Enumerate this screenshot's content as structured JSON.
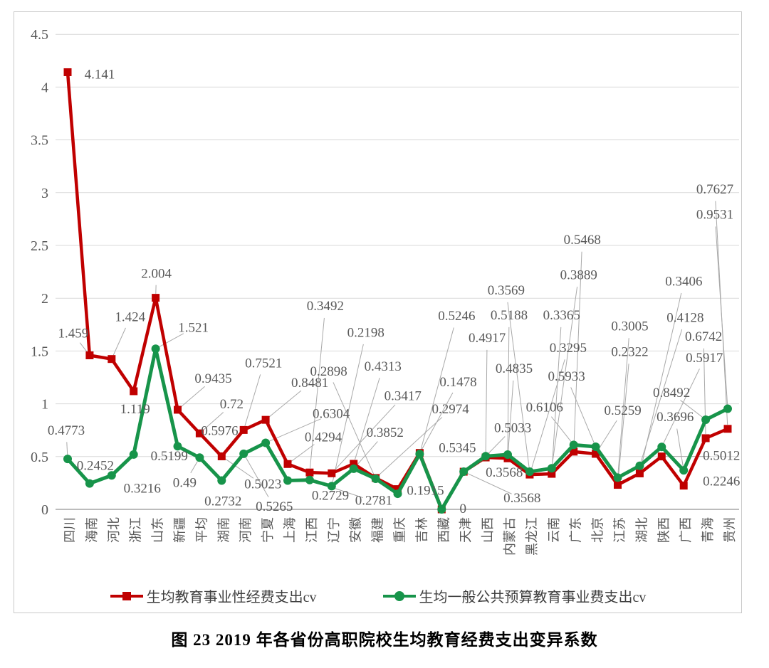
{
  "figure": {
    "caption": "图 23  2019 年各省份高职院校生均教育经费支出变异系数"
  },
  "colors": {
    "series_red": "#C00000",
    "series_green": "#17944A",
    "label_gray": "#595959",
    "grid_gray": "#D9D9D9",
    "leader_gray": "#A9A9A9",
    "axis_gray": "#A6A6A6"
  },
  "chart_data": {
    "type": "line",
    "title": "",
    "xlabel": "",
    "ylabel": "",
    "grid": true,
    "legend_position": "bottom",
    "categories": [
      "四川",
      "海南",
      "河北",
      "浙江",
      "山东",
      "新疆",
      "平均",
      "湖南",
      "河南",
      "宁夏",
      "上海",
      "江西",
      "辽宁",
      "安徽",
      "福建",
      "重庆",
      "吉林",
      "西藏",
      "天津",
      "山西",
      "内蒙古",
      "黑龙江",
      "云南",
      "广东",
      "北京",
      "江苏",
      "湖北",
      "陕西",
      "广西",
      "青海",
      "贵州"
    ],
    "x_axis": {
      "labels_rotation": -90
    },
    "y_axis": {
      "min": 0,
      "max": 4.5,
      "step": 0.5,
      "ticks": [
        "0",
        "0.5",
        "1",
        "1.5",
        "2",
        "2.5",
        "3",
        "3.5",
        "4",
        "4.5"
      ]
    },
    "series": [
      {
        "name": "生均教育事业性经费支出cv",
        "marker": "square",
        "color": "#C00000",
        "values": [
          4.141,
          1.459,
          1.424,
          1.119,
          2.004,
          0.9435,
          0.72,
          0.5023,
          0.7521,
          0.8481,
          0.4294,
          0.3492,
          0.3417,
          0.4313,
          0.2974,
          0.1915,
          0.5345,
          0,
          0.3568,
          0.4917,
          0.4835,
          0.3295,
          0.3365,
          0.5468,
          0.5259,
          0.2322,
          0.3406,
          0.5012,
          0.2246,
          0.6742,
          0.7627
        ],
        "data_labels": [
          "4.141",
          "1.459",
          "1.424",
          "1.119",
          "2.004",
          "0.9435",
          "0.72",
          "0.5023",
          "0.7521",
          "0.8481",
          "0.4294",
          "0.3492",
          "0.3417",
          "0.4313",
          "0.2974",
          "0.1915",
          "0.5345",
          "0",
          "0.3568",
          "0.4917",
          "0.4835",
          "0.3295",
          "0.3365",
          "0.5468",
          "0.5259",
          "0.2322",
          "0.3406",
          "0.5012",
          "0.2246",
          "0.6742",
          "0.7627"
        ]
      },
      {
        "name": "生均一般公共预算教育事业费支出cv",
        "marker": "circle",
        "color": "#17944A",
        "values": [
          0.4773,
          0.2452,
          0.3216,
          0.5199,
          1.521,
          0.5976,
          0.49,
          0.2732,
          0.5265,
          0.6304,
          0.2729,
          0.2781,
          0.2198,
          0.3852,
          0.2898,
          0.1478,
          0.5246,
          0,
          0.3568,
          0.5033,
          0.5188,
          0.3569,
          0.3889,
          0.6106,
          0.5933,
          0.3005,
          0.4128,
          0.5917,
          0.3696,
          0.8492,
          0.9531
        ],
        "data_labels": [
          "0.4773",
          "0.2452",
          "0.3216",
          "0.5199",
          "1.521",
          "0.5976",
          "0.49",
          "0.2732",
          "0.5265",
          "0.6304",
          "0.2729",
          "0.2781",
          "0.2198",
          "0.3852",
          "0.2898",
          "0.1478",
          "0.5246",
          "",
          "0.3568",
          "0.5033",
          "0.5188",
          "0.3569",
          "0.3889",
          "0.6106",
          "0.5933",
          "0.3005",
          "0.4128",
          "0.5917",
          "0.3696",
          "0.8492",
          "0.9531"
        ]
      }
    ]
  }
}
